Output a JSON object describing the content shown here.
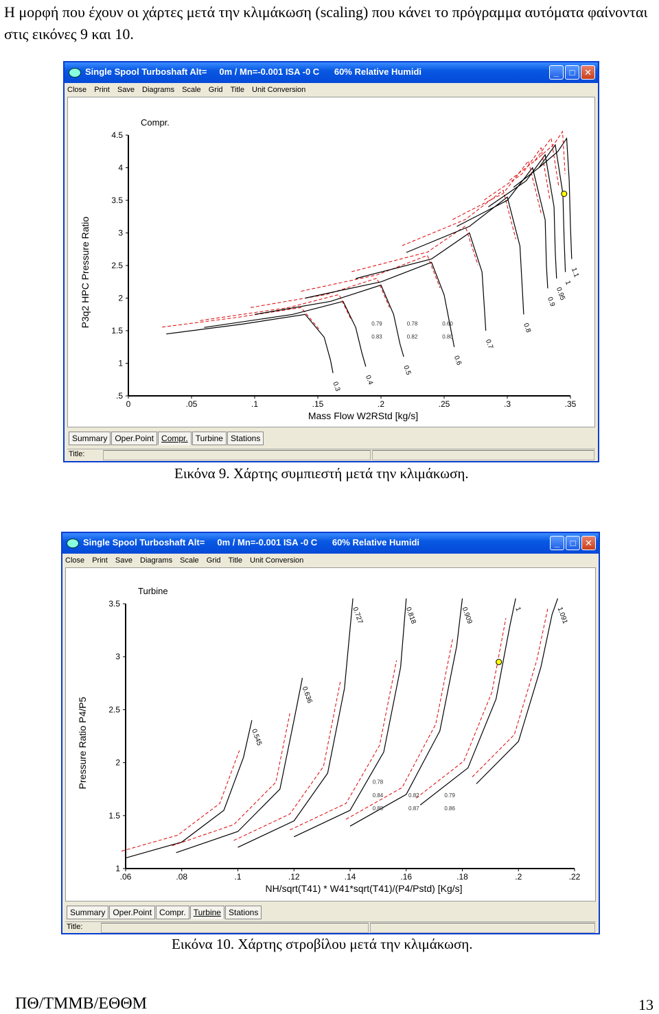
{
  "intro": "Η μορφή που έχουν οι χάρτες μετά την κλιμάκωση (scaling) που κάνει το πρόγραμμα αυτόματα φαίνονται στις εικόνες 9 και 10.",
  "window": {
    "title": "Single Spool Turboshaft Alt=     0m / Mn=-0.001 ISA -0 C      60% Relative Humidi",
    "menu": [
      "Close",
      "Print",
      "Save",
      "Diagrams",
      "Scale",
      "Grid",
      "Title",
      "Unit Conversion"
    ],
    "tabs": [
      "Summary",
      "Oper.Point",
      "Compr.",
      "Turbine",
      "Stations"
    ],
    "status_label": "Title:",
    "buttons": {
      "minimize": "_",
      "maximize": "□",
      "close": "✕"
    }
  },
  "figure9": {
    "caption": "Εικόνα 9. Χάρτης συμπιεστή μετά την κλιμάκωση.",
    "active_tab": "Compr.",
    "chart_data": {
      "type": "line",
      "title": "Compr.",
      "xlabel": "Mass Flow W2RStd [kg/s]",
      "ylabel": "P3q2    HPC Pressure Ratio",
      "xlim": [
        0,
        0.35
      ],
      "ylim": [
        0.5,
        4.5
      ],
      "xticks": [
        "0",
        ".05",
        ".1",
        ".15",
        ".2",
        ".25",
        ".3",
        ".35"
      ],
      "yticks": [
        "4.5",
        "4",
        "3.5",
        "3",
        "2.5",
        "2",
        "1.5",
        "1",
        ".5"
      ],
      "speed_lines": [
        {
          "name": "0.3",
          "x": [
            0.03,
            0.09,
            0.14,
            0.155,
            0.16,
            0.162
          ],
          "y": [
            1.45,
            1.6,
            1.75,
            1.4,
            1.05,
            0.85
          ]
        },
        {
          "name": "0.4",
          "x": [
            0.06,
            0.13,
            0.17,
            0.18,
            0.185,
            0.188
          ],
          "y": [
            1.55,
            1.75,
            1.95,
            1.55,
            1.15,
            0.95
          ]
        },
        {
          "name": "0.5",
          "x": [
            0.1,
            0.16,
            0.2,
            0.21,
            0.215,
            0.218
          ],
          "y": [
            1.75,
            1.95,
            2.2,
            1.75,
            1.3,
            1.1
          ]
        },
        {
          "name": "0.6",
          "x": [
            0.14,
            0.2,
            0.24,
            0.25,
            0.255,
            0.258
          ],
          "y": [
            2.0,
            2.25,
            2.55,
            2.05,
            1.55,
            1.25
          ]
        },
        {
          "name": "0.7",
          "x": [
            0.18,
            0.24,
            0.27,
            0.28,
            0.282,
            0.283
          ],
          "y": [
            2.3,
            2.6,
            3.0,
            2.4,
            1.8,
            1.5
          ]
        },
        {
          "name": "0.8",
          "x": [
            0.22,
            0.27,
            0.3,
            0.31,
            0.312,
            0.313
          ],
          "y": [
            2.7,
            3.1,
            3.55,
            2.8,
            2.1,
            1.75
          ]
        },
        {
          "name": "0.9",
          "x": [
            0.26,
            0.3,
            0.32,
            0.33,
            0.331,
            0.332
          ],
          "y": [
            3.1,
            3.5,
            4.0,
            3.2,
            2.5,
            2.15
          ]
        },
        {
          "name": "0.95",
          "x": [
            0.285,
            0.315,
            0.33,
            0.337,
            0.338,
            0.339
          ],
          "y": [
            3.4,
            3.8,
            4.2,
            3.4,
            2.7,
            2.3
          ]
        },
        {
          "name": "1",
          "x": [
            0.305,
            0.325,
            0.338,
            0.344,
            0.345,
            0.346
          ],
          "y": [
            3.7,
            4.0,
            4.35,
            3.6,
            2.9,
            2.4
          ]
        },
        {
          "name": "1.1",
          "x": [
            0.325,
            0.34,
            0.347,
            0.349,
            0.35,
            0.351
          ],
          "y": [
            4.0,
            4.25,
            4.45,
            3.8,
            3.1,
            2.6
          ]
        }
      ],
      "efficiency_labels": [
        "0.83",
        "0.82",
        "0.80",
        "0.79",
        "0.78",
        "0.60"
      ],
      "operating_point": {
        "x": 0.345,
        "y": 3.6
      }
    }
  },
  "figure10": {
    "caption": "Εικόνα 10. Χάρτης στροβίλου μετά την κλιμάκωση.",
    "active_tab": "Turbine",
    "chart_data": {
      "type": "line",
      "title": "Turbine",
      "xlabel": "NH/sqrt(T41) * W41*sqrt(T41)/(P4/Pstd) [Kg/s]",
      "ylabel": "Pressure Ratio P4/P5",
      "xlim": [
        0.06,
        0.22
      ],
      "ylim": [
        1,
        3.5
      ],
      "xticks": [
        ".06",
        ".08",
        ".1",
        ".12",
        ".14",
        ".16",
        ".18",
        ".2",
        ".22"
      ],
      "yticks": [
        "3.5",
        "3",
        "2.5",
        "2",
        "1.5",
        "1"
      ],
      "speed_lines": [
        {
          "name": "0.545",
          "x": [
            0.06,
            0.08,
            0.095,
            0.102,
            0.105
          ],
          "y": [
            1.1,
            1.25,
            1.55,
            2.05,
            2.4
          ]
        },
        {
          "name": "0.636",
          "x": [
            0.078,
            0.1,
            0.115,
            0.12,
            0.123
          ],
          "y": [
            1.15,
            1.35,
            1.75,
            2.4,
            2.8
          ]
        },
        {
          "name": "0.727",
          "x": [
            0.1,
            0.12,
            0.132,
            0.138,
            0.141
          ],
          "y": [
            1.2,
            1.45,
            1.9,
            2.7,
            3.55
          ]
        },
        {
          "name": "0.818",
          "x": [
            0.12,
            0.14,
            0.152,
            0.158,
            0.16
          ],
          "y": [
            1.3,
            1.55,
            2.1,
            2.9,
            3.55
          ]
        },
        {
          "name": "0.909",
          "x": [
            0.14,
            0.16,
            0.172,
            0.178,
            0.18
          ],
          "y": [
            1.4,
            1.7,
            2.3,
            3.1,
            3.55
          ]
        },
        {
          "name": "1",
          "x": [
            0.165,
            0.182,
            0.192,
            0.197,
            0.199
          ],
          "y": [
            1.6,
            1.95,
            2.6,
            3.3,
            3.55
          ]
        },
        {
          "name": "1.091",
          "x": [
            0.185,
            0.2,
            0.208,
            0.212,
            0.214
          ],
          "y": [
            1.8,
            2.2,
            2.9,
            3.4,
            3.55
          ]
        }
      ],
      "efficiency_labels": [
        "0.88",
        "0.87",
        "0.86",
        "0.84",
        "0.82",
        "0.79",
        "0.78"
      ],
      "operating_point": {
        "x": 0.193,
        "y": 2.95
      }
    }
  },
  "footer": {
    "left": "ΠΘ/ΤΜΜΒ/ΕΘΘΜ",
    "right": "13"
  }
}
